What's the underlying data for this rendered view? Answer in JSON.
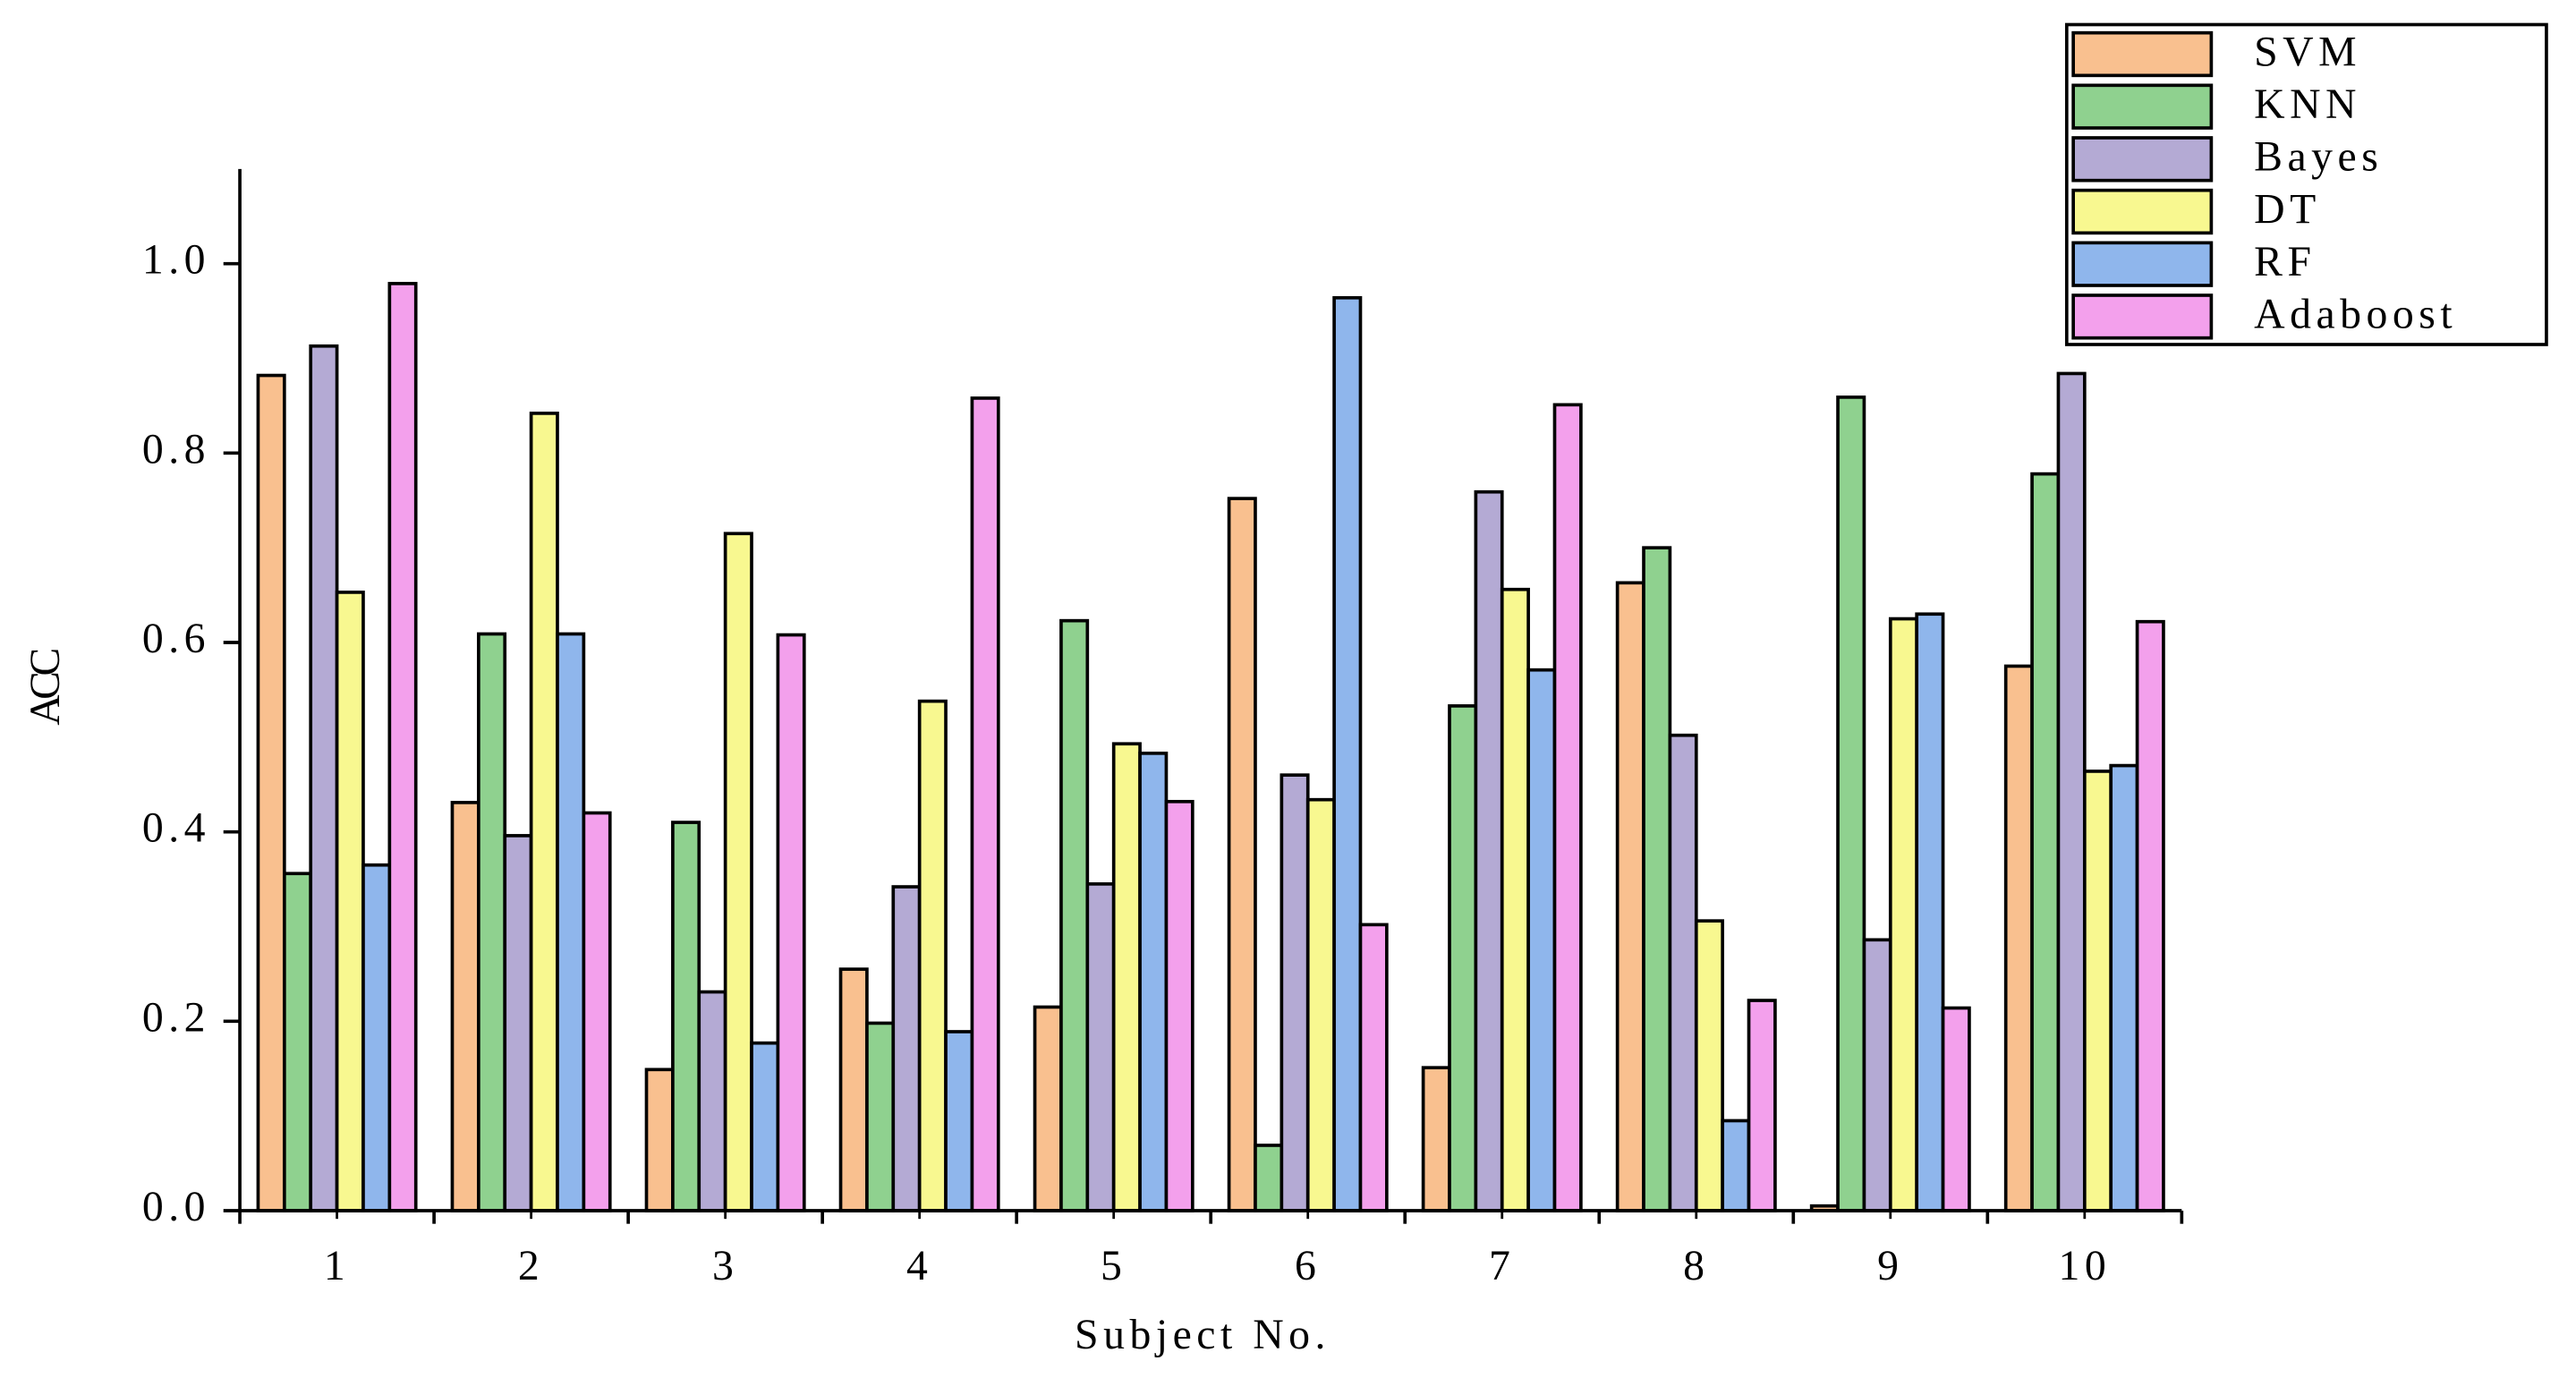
{
  "chart_data": {
    "type": "bar",
    "xlabel": "Subject No.",
    "ylabel": "ACC",
    "categories": [
      "1",
      "2",
      "3",
      "4",
      "5",
      "6",
      "7",
      "8",
      "9",
      "10"
    ],
    "series": [
      {
        "name": "SVM",
        "color": "#f9c08f",
        "values": [
          0.882,
          0.431,
          0.149,
          0.255,
          0.215,
          0.752,
          0.151,
          0.663,
          0.005,
          0.575
        ]
      },
      {
        "name": "KNN",
        "color": "#8fd18f",
        "values": [
          0.356,
          0.609,
          0.41,
          0.198,
          0.623,
          0.069,
          0.533,
          0.7,
          0.859,
          0.778
        ]
      },
      {
        "name": "Bayes",
        "color": "#b4aad4",
        "values": [
          0.913,
          0.396,
          0.231,
          0.342,
          0.345,
          0.46,
          0.759,
          0.502,
          0.286,
          0.884
        ]
      },
      {
        "name": "DT",
        "color": "#f8f890",
        "values": [
          0.653,
          0.842,
          0.715,
          0.538,
          0.493,
          0.434,
          0.656,
          0.306,
          0.625,
          0.464
        ]
      },
      {
        "name": "RF",
        "color": "#8fb6ec",
        "values": [
          0.365,
          0.609,
          0.177,
          0.189,
          0.483,
          0.964,
          0.571,
          0.095,
          0.63,
          0.47
        ]
      },
      {
        "name": "Adaboost",
        "color": "#f3a0ec",
        "values": [
          0.979,
          0.42,
          0.608,
          0.858,
          0.432,
          0.302,
          0.851,
          0.222,
          0.214,
          0.622
        ]
      }
    ],
    "ylim": [
      0,
      1.1
    ],
    "yticks": [
      {
        "value": 0,
        "label": "0.0"
      },
      0.2,
      0.4,
      0.6,
      0.8,
      {
        "value": 1,
        "label": "1.0"
      }
    ],
    "legend": "upper right"
  }
}
